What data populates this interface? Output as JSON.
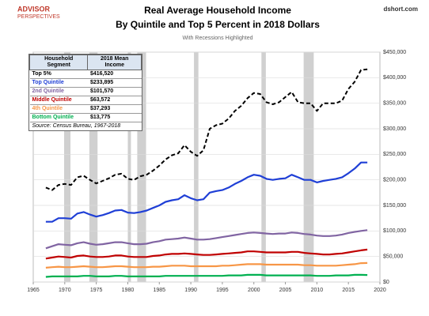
{
  "chart_data": {
    "type": "line",
    "brand": "ADVISOR",
    "brand_sub": "PERSPECTIVES",
    "site": "dshort.com",
    "title": "Real Average Household Income",
    "title_line2": "By Quintile and Top 5 Percent in 2018  Dollars",
    "subtitle": "With Recessions Highlighted",
    "legend_headers": [
      "Household Segment",
      "2018 Mean Income"
    ],
    "source": "Source: Census Bureau, 1967-2018",
    "x": [
      1967,
      1968,
      1969,
      1970,
      1971,
      1972,
      1973,
      1974,
      1975,
      1976,
      1977,
      1978,
      1979,
      1980,
      1981,
      1982,
      1983,
      1984,
      1985,
      1986,
      1987,
      1988,
      1989,
      1990,
      1991,
      1992,
      1993,
      1994,
      1995,
      1996,
      1997,
      1998,
      1999,
      2000,
      2001,
      2002,
      2003,
      2004,
      2005,
      2006,
      2007,
      2008,
      2009,
      2010,
      2011,
      2012,
      2013,
      2014,
      2015,
      2016,
      2017,
      2018
    ],
    "series": [
      {
        "name": "Top 5%",
        "color": "#000000",
        "dashed": true,
        "mean_label": "$416,520",
        "values": [
          185000,
          180000,
          190000,
          192000,
          190000,
          205000,
          208000,
          200000,
          193000,
          198000,
          203000,
          210000,
          212000,
          202000,
          200000,
          207000,
          210000,
          218000,
          228000,
          240000,
          248000,
          252000,
          268000,
          255000,
          247000,
          258000,
          300000,
          307000,
          310000,
          320000,
          335000,
          345000,
          360000,
          370000,
          368000,
          352000,
          348000,
          352000,
          362000,
          372000,
          352000,
          350000,
          350000,
          335000,
          350000,
          350000,
          350000,
          355000,
          378000,
          392000,
          415000,
          416520
        ]
      },
      {
        "name": "Top Quintile",
        "color": "#1f3fd6",
        "dashed": false,
        "mean_label": "$233,895",
        "values": [
          118000,
          118000,
          125000,
          125000,
          124000,
          134000,
          137000,
          132000,
          128000,
          131000,
          135000,
          140000,
          141000,
          136000,
          135000,
          137000,
          140000,
          145000,
          150000,
          157000,
          160000,
          162000,
          170000,
          164000,
          160000,
          162000,
          175000,
          178000,
          180000,
          185000,
          192000,
          198000,
          205000,
          210000,
          208000,
          202000,
          200000,
          202000,
          203000,
          210000,
          205000,
          200000,
          200000,
          195000,
          198000,
          200000,
          202000,
          205000,
          213000,
          222000,
          234000,
          233895
        ]
      },
      {
        "name": "2nd Quintile",
        "color": "#8064a2",
        "dashed": false,
        "mean_label": "$101,570",
        "values": [
          66000,
          70000,
          74000,
          73000,
          72000,
          76000,
          78000,
          75000,
          73000,
          74000,
          76000,
          78000,
          78000,
          76000,
          74000,
          74000,
          75000,
          78000,
          80000,
          83000,
          84000,
          85000,
          87000,
          85000,
          83000,
          83000,
          84000,
          86000,
          88000,
          90000,
          92000,
          94000,
          96000,
          97000,
          96000,
          95000,
          94000,
          95000,
          95000,
          97000,
          96000,
          94000,
          93000,
          91000,
          90000,
          90000,
          91000,
          93000,
          96000,
          98000,
          100000,
          101570
        ]
      },
      {
        "name": "Middle Quintile",
        "color": "#c00000",
        "dashed": false,
        "mean_label": "$63,572",
        "values": [
          46000,
          48000,
          50000,
          49000,
          48000,
          51000,
          52000,
          50000,
          49000,
          49000,
          50000,
          52000,
          52000,
          50000,
          49000,
          49000,
          49000,
          51000,
          52000,
          54000,
          55000,
          55000,
          56000,
          55000,
          54000,
          53000,
          53000,
          54000,
          55000,
          56000,
          57000,
          58000,
          60000,
          60000,
          59000,
          58000,
          58000,
          58000,
          58000,
          59000,
          59000,
          57000,
          56000,
          55000,
          54000,
          54000,
          55000,
          56000,
          58000,
          60000,
          62000,
          63572
        ]
      },
      {
        "name": "4th Quintile",
        "color": "#f79646",
        "dashed": false,
        "mean_label": "$37,293",
        "values": [
          28000,
          29000,
          30000,
          29000,
          29000,
          30000,
          31000,
          30000,
          29000,
          29000,
          30000,
          31000,
          31000,
          30000,
          29000,
          29000,
          29000,
          30000,
          30000,
          31000,
          32000,
          32000,
          32000,
          31000,
          31000,
          31000,
          31000,
          31000,
          32000,
          32000,
          33000,
          34000,
          35000,
          35000,
          35000,
          34000,
          34000,
          34000,
          34000,
          34000,
          34000,
          33000,
          33000,
          32000,
          32000,
          32000,
          32000,
          33000,
          34000,
          35000,
          37000,
          37293
        ]
      },
      {
        "name": "Bottom Quintile",
        "color": "#00b050",
        "dashed": false,
        "mean_label": "$13,775",
        "values": [
          10000,
          11000,
          11000,
          11000,
          11000,
          11000,
          12000,
          12000,
          11000,
          11000,
          11000,
          12000,
          12000,
          11000,
          11000,
          11000,
          11000,
          11000,
          11000,
          12000,
          12000,
          12000,
          12000,
          12000,
          12000,
          12000,
          12000,
          12000,
          12000,
          13000,
          13000,
          13000,
          14000,
          14000,
          14000,
          13000,
          13000,
          13000,
          13000,
          13000,
          13000,
          13000,
          13000,
          12000,
          12000,
          12000,
          13000,
          13000,
          13000,
          14000,
          14000,
          13775
        ]
      }
    ],
    "recessions": [
      [
        1969.9,
        1970.9
      ],
      [
        1973.9,
        1975.2
      ],
      [
        1980.0,
        1980.5
      ],
      [
        1981.5,
        1982.9
      ],
      [
        1990.5,
        1991.2
      ],
      [
        2001.2,
        2001.9
      ],
      [
        2007.9,
        2009.5
      ]
    ],
    "recession_color": "#d0d0d0",
    "xlim": [
      1965,
      2020
    ],
    "xticks": [
      1965,
      1970,
      1975,
      1980,
      1985,
      1990,
      1995,
      2000,
      2005,
      2010,
      2015,
      2020
    ],
    "ylim": [
      0,
      450000
    ],
    "yticks": [
      {
        "value": 0,
        "label": "$0"
      },
      {
        "value": 50000,
        "label": "$50,000"
      },
      {
        "value": 100000,
        "label": "$100,000"
      },
      {
        "value": 150000,
        "label": "$150,000"
      },
      {
        "value": 200000,
        "label": "$200,000"
      },
      {
        "value": 250000,
        "label": "$250,000"
      },
      {
        "value": 300000,
        "label": "$300,000"
      },
      {
        "value": 350000,
        "label": "$350,000"
      },
      {
        "value": 400000,
        "label": "$400,000"
      },
      {
        "value": 450000,
        "label": "$450,000"
      }
    ],
    "grid": true
  }
}
